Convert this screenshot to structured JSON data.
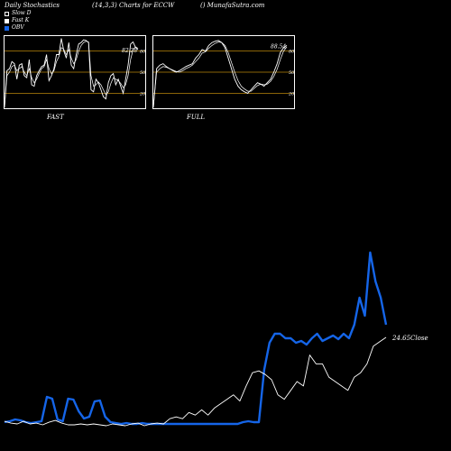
{
  "header": {
    "left": "Daily Stochastics",
    "center": "(14,3,3) Charts for ECCW",
    "right": "() MunafaSutra.com"
  },
  "legend": {
    "slow_d": "Slow  D",
    "fast_k": "Fast K",
    "obv": "OBV"
  },
  "colors": {
    "background": "#000000",
    "line": "#ffffff",
    "obv": "#1565e8",
    "level_lines": "#b8860b"
  },
  "chart_data": [
    {
      "type": "line",
      "title": "FAST",
      "last_value_label": "82.28",
      "ylim": [
        0,
        100
      ],
      "y_ticks": [
        {
          "value": 80,
          "label": "80"
        },
        {
          "value": 50,
          "label": "50"
        },
        {
          "value": 20,
          "label": "20"
        }
      ],
      "series": [
        {
          "values": [
            0,
            52,
            55,
            65,
            62,
            40,
            60,
            62,
            45,
            42,
            68,
            32,
            30,
            45,
            52,
            58,
            60,
            75,
            38,
            45,
            55,
            75,
            75,
            98,
            80,
            70,
            92,
            60,
            55,
            75,
            90,
            92,
            96,
            95,
            92,
            25,
            22,
            40,
            35,
            25,
            15,
            12,
            35,
            45,
            48,
            32,
            40,
            30,
            20,
            40,
            60,
            90,
            93,
            85,
            82
          ]
        },
        {
          "values": [
            0,
            45,
            50,
            58,
            60,
            52,
            55,
            58,
            50,
            45,
            55,
            42,
            35,
            40,
            48,
            55,
            58,
            68,
            55,
            48,
            52,
            65,
            72,
            85,
            82,
            75,
            82,
            70,
            62,
            68,
            80,
            88,
            92,
            94,
            93,
            45,
            30,
            32,
            36,
            32,
            25,
            18,
            22,
            34,
            42,
            40,
            38,
            34,
            28,
            32,
            45,
            68,
            82,
            86,
            84
          ]
        }
      ]
    },
    {
      "type": "line",
      "title": "FULL",
      "last_value_label": "88.54",
      "ylim": [
        0,
        100
      ],
      "y_ticks": [
        {
          "value": 80,
          "label": "80"
        },
        {
          "value": 50,
          "label": "50"
        },
        {
          "value": 20,
          "label": "20"
        }
      ],
      "series": [
        {
          "values": [
            0,
            55,
            60,
            62,
            58,
            55,
            52,
            50,
            52,
            55,
            58,
            60,
            62,
            70,
            75,
            82,
            80,
            88,
            92,
            94,
            95,
            92,
            85,
            70,
            55,
            40,
            30,
            25,
            22,
            20,
            25,
            30,
            35,
            33,
            30,
            35,
            40,
            50,
            62,
            78,
            85,
            88
          ]
        },
        {
          "values": [
            0,
            50,
            55,
            58,
            57,
            55,
            53,
            51,
            50,
            52,
            55,
            57,
            60,
            65,
            70,
            77,
            79,
            84,
            88,
            91,
            93,
            92,
            88,
            78,
            64,
            50,
            38,
            30,
            26,
            23,
            23,
            27,
            31,
            33,
            32,
            33,
            37,
            44,
            54,
            68,
            80,
            86
          ]
        }
      ]
    },
    {
      "type": "line",
      "title": "",
      "close_label": "24.65Close",
      "series": [
        {
          "name": "OBV",
          "color": "#1565e8",
          "values": [
            2,
            3,
            5,
            4,
            2,
            1,
            2,
            3,
            30,
            28,
            5,
            3,
            28,
            27,
            14,
            6,
            8,
            25,
            26,
            8,
            2,
            1,
            0,
            1,
            0,
            0,
            1,
            0,
            0,
            0,
            0,
            0,
            0,
            0,
            0,
            0,
            0,
            0,
            0,
            0,
            0,
            0,
            0,
            0,
            0,
            2,
            3,
            2,
            2,
            60,
            90,
            100,
            100,
            95,
            95,
            90,
            92,
            88,
            95,
            100,
            92,
            95,
            98,
            94,
            100,
            95,
            110,
            140,
            120,
            190,
            158,
            140,
            110
          ]
        },
        {
          "name": "Price",
          "color": "#ffffff",
          "values": [
            5,
            3,
            2,
            5,
            2,
            3,
            1,
            4,
            6,
            3,
            1,
            1,
            2,
            1,
            2,
            1,
            0,
            2,
            1,
            0,
            2,
            3,
            0,
            2,
            3,
            2,
            8,
            10,
            8,
            15,
            12,
            18,
            12,
            20,
            25,
            30,
            35,
            28,
            45,
            60,
            62,
            58,
            52,
            35,
            30,
            40,
            50,
            45,
            80,
            70,
            70,
            55,
            50,
            45,
            40,
            55,
            60,
            70,
            90,
            95,
            100
          ]
        }
      ]
    }
  ]
}
